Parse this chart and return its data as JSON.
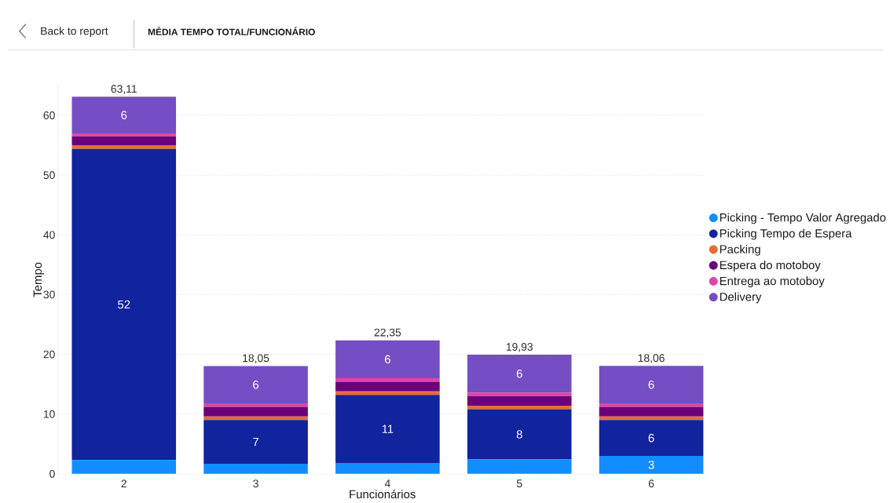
{
  "chart_data": {
    "type": "bar",
    "stacked": true,
    "title": "MÉDIA TEMPO TOTAL/FUNCIONÁRIO",
    "annotations": [
      "Back to report"
    ],
    "xlabel": "Funcionários",
    "ylabel": "Tempo",
    "categories": [
      "2",
      "3",
      "4",
      "5",
      "6"
    ],
    "series": [
      {
        "name": "Picking - Tempo Valor Agregado",
        "color": "#118dff",
        "values": [
          2.3,
          1.7,
          1.8,
          2.4,
          3.0
        ],
        "value_labels": [
          null,
          null,
          null,
          null,
          "3"
        ]
      },
      {
        "name": "Picking Tempo de Espera",
        "color": "#12239e",
        "values": [
          52.1,
          7.3,
          11.4,
          8.4,
          6.0
        ],
        "value_labels": [
          "52",
          "7",
          "11",
          "8",
          "6"
        ]
      },
      {
        "name": "Packing",
        "color": "#e66c37",
        "values": [
          0.6,
          0.6,
          0.6,
          0.6,
          0.6
        ]
      },
      {
        "name": "Espera do motoboy",
        "color": "#6b007b",
        "values": [
          1.5,
          1.6,
          1.6,
          1.6,
          1.6
        ]
      },
      {
        "name": "Entrega ao motoboy",
        "color": "#e044a7",
        "values": [
          0.5,
          0.6,
          0.6,
          0.6,
          0.6
        ]
      },
      {
        "name": "Delivery",
        "color": "#744ec2",
        "values": [
          6.11,
          6.25,
          6.35,
          6.33,
          6.26
        ],
        "value_labels": [
          "6",
          "6",
          "6",
          "6",
          "6"
        ]
      }
    ],
    "totals": [
      "63,11",
      "18,05",
      "22,35",
      "19,93",
      "18,06"
    ],
    "ylim": [
      0,
      65
    ],
    "yticks": [
      0,
      10,
      20,
      30,
      40,
      50,
      60
    ],
    "grid": "y",
    "legend": "right"
  }
}
